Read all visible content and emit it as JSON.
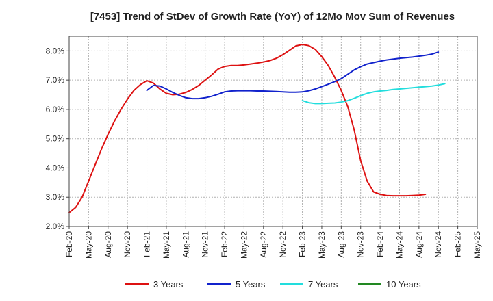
{
  "chart_data": {
    "type": "line",
    "title": "[7453]  Trend of StDev of Growth Rate (YoY) of 12Mo Mov Sum of Revenues",
    "xlabel": "",
    "ylabel": "",
    "ylim": [
      2.0,
      8.5
    ],
    "grid": true,
    "legend_position": "bottom",
    "x_tick_labels": [
      "Feb-20",
      "May-20",
      "Aug-20",
      "Nov-20",
      "Feb-21",
      "May-21",
      "Aug-21",
      "Nov-21",
      "Feb-22",
      "May-22",
      "Aug-22",
      "Nov-22",
      "Feb-23",
      "May-23",
      "Aug-23",
      "Nov-23",
      "Feb-24",
      "May-24",
      "Aug-24",
      "Nov-24",
      "Feb-25",
      "May-25"
    ],
    "y_ticks": [
      2.0,
      3.0,
      4.0,
      5.0,
      6.0,
      7.0,
      8.0
    ],
    "y_tick_labels": [
      "2.0%",
      "3.0%",
      "4.0%",
      "5.0%",
      "6.0%",
      "7.0%",
      "8.0%"
    ],
    "series": [
      {
        "name": "3 Years",
        "color": "#dd1111",
        "start_index": 0,
        "values": [
          2.47,
          2.65,
          3.0,
          3.55,
          4.1,
          4.65,
          5.15,
          5.6,
          6.0,
          6.35,
          6.65,
          6.85,
          6.98,
          6.9,
          6.7,
          6.55,
          6.5,
          6.52,
          6.58,
          6.68,
          6.82,
          7.0,
          7.18,
          7.38,
          7.47,
          7.5,
          7.5,
          7.52,
          7.55,
          7.58,
          7.62,
          7.67,
          7.75,
          7.87,
          8.02,
          8.17,
          8.22,
          8.18,
          8.05,
          7.8,
          7.5,
          7.1,
          6.65,
          6.1,
          5.3,
          4.25,
          3.55,
          3.18,
          3.1,
          3.06,
          3.05,
          3.05,
          3.05,
          3.06,
          3.07,
          3.1
        ]
      },
      {
        "name": "5 Years",
        "color": "#1122cc",
        "start_index": 12,
        "values": [
          6.65,
          6.82,
          6.8,
          6.7,
          6.58,
          6.48,
          6.4,
          6.37,
          6.37,
          6.4,
          6.45,
          6.52,
          6.6,
          6.63,
          6.64,
          6.64,
          6.64,
          6.63,
          6.63,
          6.62,
          6.61,
          6.6,
          6.59,
          6.59,
          6.6,
          6.64,
          6.7,
          6.78,
          6.86,
          6.95,
          7.05,
          7.2,
          7.35,
          7.46,
          7.55,
          7.6,
          7.65,
          7.69,
          7.72,
          7.75,
          7.77,
          7.79,
          7.82,
          7.85,
          7.89,
          7.96
        ]
      },
      {
        "name": "7 Years",
        "color": "#22dddd",
        "start_index": 36,
        "values": [
          6.3,
          6.23,
          6.2,
          6.2,
          6.21,
          6.22,
          6.25,
          6.3,
          6.38,
          6.47,
          6.55,
          6.6,
          6.63,
          6.65,
          6.68,
          6.7,
          6.72,
          6.74,
          6.76,
          6.78,
          6.8,
          6.83,
          6.88
        ]
      },
      {
        "name": "10 Years",
        "color": "#228822",
        "start_index": 0,
        "values": []
      }
    ]
  }
}
